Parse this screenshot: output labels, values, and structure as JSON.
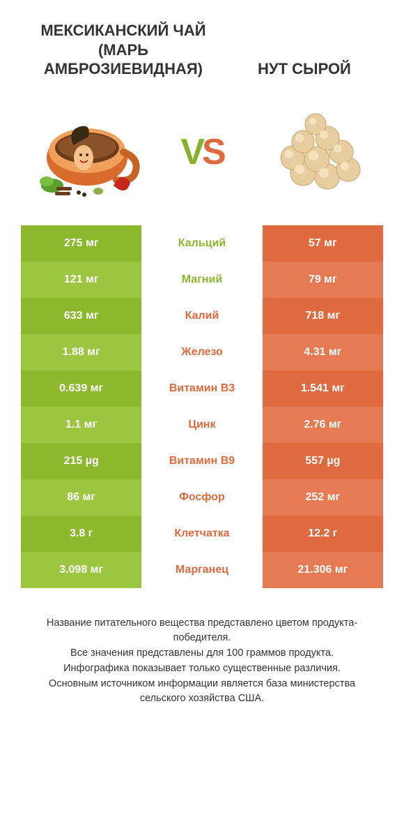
{
  "titles": {
    "left": "МЕКСИКАНСКИЙ ЧАЙ (МАРЬ АМБРОЗИЕВИДНАЯ)",
    "right": "НУТ СЫРОЙ"
  },
  "vs": {
    "v": "V",
    "s": "S"
  },
  "colors": {
    "left_a": "#8cb82e",
    "left_b": "#9cc640",
    "right_a": "#e06a3f",
    "right_b": "#e67a52",
    "mid_left": "#8cb82e",
    "mid_right": "#e06a3f",
    "bg": "#ffffff"
  },
  "rows": [
    {
      "left": "275 мг",
      "label": "Кальций",
      "right": "57 мг",
      "winner": "left"
    },
    {
      "left": "121 мг",
      "label": "Магний",
      "right": "79 мг",
      "winner": "left"
    },
    {
      "left": "633 мг",
      "label": "Калий",
      "right": "718 мг",
      "winner": "right"
    },
    {
      "left": "1.88 мг",
      "label": "Железо",
      "right": "4.31 мг",
      "winner": "right"
    },
    {
      "left": "0.639 мг",
      "label": "Витамин B3",
      "right": "1.541 мг",
      "winner": "right"
    },
    {
      "left": "1.1 мг",
      "label": "Цинк",
      "right": "2.76 мг",
      "winner": "right"
    },
    {
      "left": "215 µg",
      "label": "Витамин B9",
      "right": "557 µg",
      "winner": "right"
    },
    {
      "left": "86 мг",
      "label": "Фосфор",
      "right": "252 мг",
      "winner": "right"
    },
    {
      "left": "3.8 г",
      "label": "Клетчатка",
      "right": "12.2 г",
      "winner": "right"
    },
    {
      "left": "3.098 мг",
      "label": "Марганец",
      "right": "21.306 мг",
      "winner": "right"
    }
  ],
  "footer": {
    "l1": "Название питательного вещества представлено цветом продукта-победителя.",
    "l2": "Все значения представлены для 100 граммов продукта.",
    "l3": "Инфографика показывает только существенные различия.",
    "l4": "Основным источником информации является база министерства сельского хозяйства США."
  }
}
